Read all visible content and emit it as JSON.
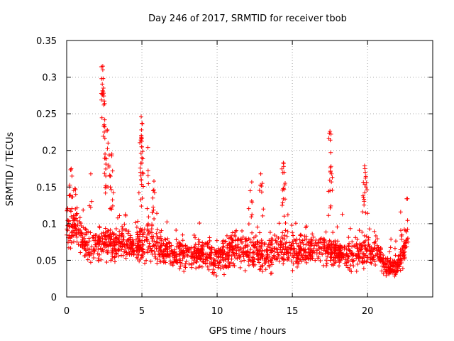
{
  "chart_data": {
    "type": "scatter",
    "title": "Day 246 of 2017, SRMTID for receiver tbob",
    "xlabel": "GPS time / hours",
    "ylabel": "SRMTID / TECUs",
    "xlim": [
      0,
      24.33
    ],
    "ylim": [
      0,
      0.35
    ],
    "x_ticks": [
      0,
      5,
      10,
      15,
      20
    ],
    "x_tick_labels": [
      "0",
      "5",
      "10",
      "15",
      "20"
    ],
    "y_ticks": [
      0,
      0.05,
      0.1,
      0.15,
      0.2,
      0.25,
      0.3,
      0.35
    ],
    "y_tick_labels": [
      "0",
      "0.05",
      "0.1",
      "0.15",
      "0.2",
      "0.25",
      "0.3",
      "0.35"
    ],
    "grid": true,
    "marker": "+",
    "marker_color": "#ff0000",
    "points_note": "Approximately 2000 dense '+' points; representative samples listed; baseline scatter generated from the sampled trend envelope below.",
    "baseline": [
      {
        "x": 0.0,
        "low": 0.06,
        "high": 0.13
      },
      {
        "x": 0.5,
        "low": 0.07,
        "high": 0.12
      },
      {
        "x": 1.0,
        "low": 0.05,
        "high": 0.11
      },
      {
        "x": 1.5,
        "low": 0.04,
        "high": 0.09
      },
      {
        "x": 2.0,
        "low": 0.05,
        "high": 0.09
      },
      {
        "x": 2.5,
        "low": 0.05,
        "high": 0.1
      },
      {
        "x": 3.0,
        "low": 0.04,
        "high": 0.1
      },
      {
        "x": 3.5,
        "low": 0.05,
        "high": 0.1
      },
      {
        "x": 4.0,
        "low": 0.05,
        "high": 0.1
      },
      {
        "x": 4.5,
        "low": 0.05,
        "high": 0.09
      },
      {
        "x": 5.0,
        "low": 0.04,
        "high": 0.1
      },
      {
        "x": 5.5,
        "low": 0.05,
        "high": 0.11
      },
      {
        "x": 6.0,
        "low": 0.04,
        "high": 0.09
      },
      {
        "x": 7.0,
        "low": 0.04,
        "high": 0.08
      },
      {
        "x": 8.0,
        "low": 0.04,
        "high": 0.08
      },
      {
        "x": 9.0,
        "low": 0.04,
        "high": 0.08
      },
      {
        "x": 10.0,
        "low": 0.03,
        "high": 0.08
      },
      {
        "x": 11.0,
        "low": 0.04,
        "high": 0.09
      },
      {
        "x": 12.0,
        "low": 0.04,
        "high": 0.09
      },
      {
        "x": 13.0,
        "low": 0.03,
        "high": 0.08
      },
      {
        "x": 14.0,
        "low": 0.04,
        "high": 0.09
      },
      {
        "x": 15.0,
        "low": 0.04,
        "high": 0.09
      },
      {
        "x": 16.0,
        "low": 0.04,
        "high": 0.09
      },
      {
        "x": 17.0,
        "low": 0.04,
        "high": 0.09
      },
      {
        "x": 18.0,
        "low": 0.04,
        "high": 0.08
      },
      {
        "x": 19.0,
        "low": 0.03,
        "high": 0.08
      },
      {
        "x": 20.0,
        "low": 0.04,
        "high": 0.09
      },
      {
        "x": 20.8,
        "low": 0.04,
        "high": 0.08
      },
      {
        "x": 21.0,
        "low": 0.03,
        "high": 0.06
      },
      {
        "x": 22.0,
        "low": 0.025,
        "high": 0.055
      },
      {
        "x": 22.6,
        "low": 0.05,
        "high": 0.09
      }
    ],
    "peaks": [
      {
        "x": 0.3,
        "y": 0.175
      },
      {
        "x": 0.35,
        "y": 0.165
      },
      {
        "x": 0.2,
        "y": 0.15
      },
      {
        "x": 0.6,
        "y": 0.14
      },
      {
        "x": 0.55,
        "y": 0.148
      },
      {
        "x": 1.6,
        "y": 0.168
      },
      {
        "x": 2.4,
        "y": 0.315
      },
      {
        "x": 2.4,
        "y": 0.31
      },
      {
        "x": 2.42,
        "y": 0.298
      },
      {
        "x": 2.44,
        "y": 0.285
      },
      {
        "x": 2.45,
        "y": 0.278
      },
      {
        "x": 2.47,
        "y": 0.262
      },
      {
        "x": 2.5,
        "y": 0.225
      },
      {
        "x": 2.55,
        "y": 0.195
      },
      {
        "x": 2.6,
        "y": 0.165
      },
      {
        "x": 2.7,
        "y": 0.228
      },
      {
        "x": 2.75,
        "y": 0.21
      },
      {
        "x": 2.8,
        "y": 0.18
      },
      {
        "x": 3.0,
        "y": 0.195
      },
      {
        "x": 3.05,
        "y": 0.172
      },
      {
        "x": 2.9,
        "y": 0.15
      },
      {
        "x": 4.95,
        "y": 0.246
      },
      {
        "x": 5.0,
        "y": 0.237
      },
      {
        "x": 4.97,
        "y": 0.228
      },
      {
        "x": 4.96,
        "y": 0.218
      },
      {
        "x": 4.98,
        "y": 0.205
      },
      {
        "x": 5.0,
        "y": 0.19
      },
      {
        "x": 4.9,
        "y": 0.17
      },
      {
        "x": 4.95,
        "y": 0.16
      },
      {
        "x": 5.4,
        "y": 0.204
      },
      {
        "x": 5.8,
        "y": 0.158
      },
      {
        "x": 5.75,
        "y": 0.145
      },
      {
        "x": 12.3,
        "y": 0.157
      },
      {
        "x": 12.2,
        "y": 0.145
      },
      {
        "x": 12.9,
        "y": 0.168
      },
      {
        "x": 13.0,
        "y": 0.155
      },
      {
        "x": 14.4,
        "y": 0.183
      },
      {
        "x": 14.42,
        "y": 0.178
      },
      {
        "x": 14.45,
        "y": 0.17
      },
      {
        "x": 14.4,
        "y": 0.148
      },
      {
        "x": 17.5,
        "y": 0.226
      },
      {
        "x": 17.52,
        "y": 0.214
      },
      {
        "x": 17.55,
        "y": 0.197
      },
      {
        "x": 17.6,
        "y": 0.168
      },
      {
        "x": 17.5,
        "y": 0.145
      },
      {
        "x": 19.8,
        "y": 0.179
      },
      {
        "x": 19.82,
        "y": 0.175
      },
      {
        "x": 19.85,
        "y": 0.17
      },
      {
        "x": 19.9,
        "y": 0.15
      },
      {
        "x": 19.7,
        "y": 0.138
      },
      {
        "x": 22.2,
        "y": 0.116
      },
      {
        "x": 22.6,
        "y": 0.134
      }
    ]
  }
}
